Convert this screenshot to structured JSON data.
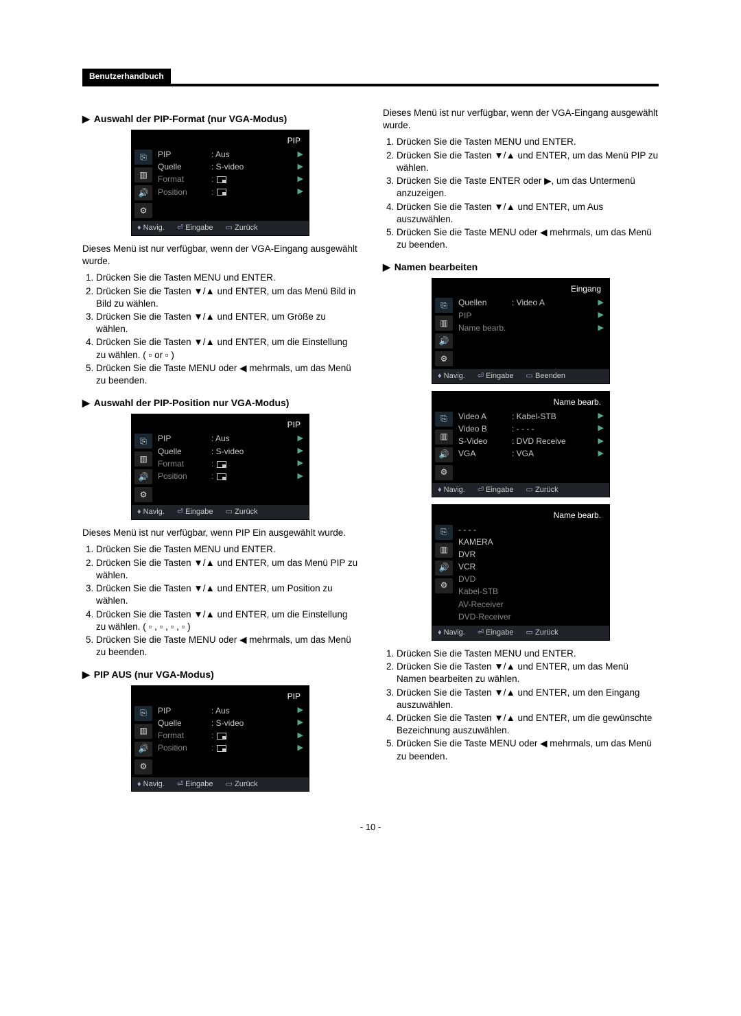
{
  "header": {
    "badge": "Benutzerhandbuch"
  },
  "footer": {
    "page": "- 10 -"
  },
  "osd_common": {
    "nav": "Navig.",
    "enter": "Eingabe",
    "back": "Zurück",
    "end": "Beenden",
    "sidebar_glyphs": [
      "⎘",
      "▥",
      "🔊",
      "⚙"
    ]
  },
  "left": {
    "sec1": {
      "title": "Auswahl der PIP-Format (nur VGA-Modus)",
      "osd": {
        "title": "PIP",
        "rows": [
          {
            "lbl": "PIP",
            "val": ": Aus",
            "dim": false,
            "icon": null
          },
          {
            "lbl": "Quelle",
            "val": ": S-video",
            "dim": false,
            "icon": null
          },
          {
            "lbl": "Format",
            "val": ":",
            "dim": true,
            "icon": "br"
          },
          {
            "lbl": "Position",
            "val": ":",
            "dim": true,
            "icon": "br"
          }
        ]
      },
      "intro": "Dieses Menü ist nur verfügbar, wenn der VGA-Eingang ausgewählt wurde.",
      "steps": [
        "Drücken Sie die Tasten MENU und ENTER.",
        "Drücken Sie die Tasten ▼/▲ und ENTER, um das Menü Bild in Bild zu wählen.",
        "Drücken Sie die Tasten ▼/▲ und ENTER, um Größe zu wählen.",
        "Drücken Sie die Tasten ▼/▲ und ENTER, um die Einstellung zu wählen. ( ▫ or ▫ )",
        "Drücken Sie die Taste MENU oder ◀ mehrmals, um das Menü zu beenden."
      ]
    },
    "sec2": {
      "title": "Auswahl der PIP-Position\nnur VGA-Modus)",
      "osd": {
        "title": "PIP",
        "rows": [
          {
            "lbl": "PIP",
            "val": ": Aus",
            "dim": false,
            "icon": null
          },
          {
            "lbl": "Quelle",
            "val": ": S-video",
            "dim": false,
            "icon": null
          },
          {
            "lbl": "Format",
            "val": ":",
            "dim": true,
            "icon": "br"
          },
          {
            "lbl": "Position",
            "val": ":",
            "dim": true,
            "icon": "br"
          }
        ]
      },
      "intro": "Dieses Menü ist nur verfügbar, wenn PIP Ein ausgewählt wurde.",
      "steps": [
        "Drücken Sie die Tasten MENU und ENTER.",
        "Drücken Sie die Tasten ▼/▲ und ENTER, um das Menü PIP zu wählen.",
        "Drücken Sie die Tasten ▼/▲ und ENTER, um Position zu wählen.",
        "Drücken Sie die Tasten ▼/▲ und ENTER, um die Einstellung zu wählen. ( ▫ , ▫ , ▫ , ▫ )",
        "Drücken Sie die Taste MENU oder ◀ mehrmals, um das Menü zu beenden."
      ]
    },
    "sec3": {
      "title": "PIP AUS (nur VGA-Modus)",
      "osd": {
        "title": "PIP",
        "rows": [
          {
            "lbl": "PIP",
            "val": ": Aus",
            "dim": false,
            "icon": null,
            "sel": true
          },
          {
            "lbl": "Quelle",
            "val": ": S-video",
            "dim": false,
            "icon": null
          },
          {
            "lbl": "Format",
            "val": ":",
            "dim": true,
            "icon": "br"
          },
          {
            "lbl": "Position",
            "val": ":",
            "dim": true,
            "icon": "br"
          }
        ]
      }
    }
  },
  "right": {
    "intro": "Dieses Menü ist nur verfügbar, wenn der VGA-Eingang ausgewählt wurde.",
    "steps_a": [
      "Drücken Sie die Tasten MENU und ENTER.",
      "Drücken Sie die Tasten ▼/▲ und ENTER, um das Menü PIP zu wählen.",
      "Drücken Sie die Taste ENTER oder ▶, um das Untermenü anzuzeigen.",
      "Drücken Sie die Tasten ▼/▲ und ENTER, um Aus auszuwählen.",
      "Drücken Sie die Taste MENU oder ◀ mehrmals, um das Menü zu beenden."
    ],
    "sec_name": {
      "title": "Namen bearbeiten"
    },
    "osd_input": {
      "title": "Eingang",
      "rows": [
        {
          "lbl": "Quellen",
          "val": ": Video A",
          "dim": false
        },
        {
          "lbl": "PIP",
          "val": "",
          "dim": true
        },
        {
          "lbl": "Name bearb.",
          "val": "",
          "dim": true
        }
      ],
      "footer_back": "Beenden"
    },
    "osd_name1": {
      "title": "Name bearb.",
      "rows": [
        {
          "lbl": "Video A",
          "val": ": Kabel-STB",
          "dim": false
        },
        {
          "lbl": "Video B",
          "val": ": - - - -",
          "dim": false
        },
        {
          "lbl": "S-Video",
          "val": ": DVD Receive",
          "dim": false
        },
        {
          "lbl": "VGA",
          "val": ": VGA",
          "dim": false
        }
      ],
      "footer_back": "Zurück"
    },
    "osd_name2": {
      "title": "Name bearb.",
      "list": [
        "- - - -",
        "KAMERA",
        "DVR",
        "VCR",
        "DVD",
        "Kabel-STB",
        "AV-Receiver",
        "DVD-Receiver"
      ],
      "footer_back": "Zurück"
    },
    "steps_b": [
      "Drücken Sie die Tasten MENU und ENTER.",
      "Drücken Sie die Tasten ▼/▲ und ENTER, um das Menü Namen bearbeiten zu wählen.",
      "Drücken Sie die Tasten ▼/▲ und ENTER, um den Eingang auszuwählen.",
      "Drücken Sie die Tasten ▼/▲ und ENTER, um die gewünschte Bezeichnung auszuwählen.",
      "Drücken Sie die Taste MENU oder ◀ mehrmals, um das Menü zu beenden."
    ]
  }
}
